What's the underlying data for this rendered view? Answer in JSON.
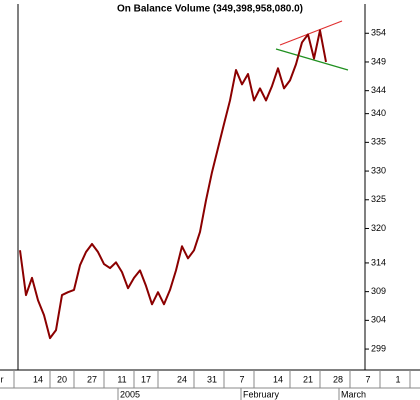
{
  "chart_data": {
    "type": "line",
    "title": "On Balance Volume (349,398,958,080.0)",
    "color": "#8b0000",
    "categories": [
      "r",
      null,
      null,
      null,
      null,
      null,
      "14",
      null,
      null,
      null,
      "20",
      null,
      null,
      null,
      null,
      "27",
      null,
      null,
      null,
      null,
      "11",
      null,
      null,
      null,
      "17",
      null,
      null,
      null,
      null,
      null,
      "24",
      null,
      null,
      null,
      null,
      "31",
      null,
      null,
      null,
      null,
      "7",
      null,
      null,
      null,
      null,
      null,
      "14",
      null,
      null,
      null,
      null,
      "21",
      null,
      null,
      null,
      null,
      "28",
      null,
      null,
      null,
      null,
      "7",
      null,
      null,
      null,
      null,
      "1",
      null
    ],
    "values": [
      null,
      null,
      null,
      316.2,
      308.4,
      311.4,
      307.5,
      304.9,
      300.9,
      302.3,
      308.4,
      308.9,
      309.3,
      313.6,
      315.9,
      317.3,
      315.9,
      313.8,
      313.1,
      314.1,
      312.4,
      309.6,
      311.4,
      312.7,
      310.0,
      306.8,
      308.9,
      306.8,
      309.3,
      312.7,
      316.9,
      314.8,
      316.2,
      319.4,
      324.9,
      329.8,
      334.0,
      338.2,
      342.3,
      347.6,
      345.1,
      346.9,
      342.3,
      344.4,
      342.3,
      344.8,
      347.9,
      344.4,
      345.8,
      348.6,
      352.4,
      353.8,
      349.6,
      354.5,
      349.0,
      null,
      null,
      null,
      null,
      null,
      null,
      null,
      null,
      null,
      null,
      null,
      null,
      null
    ],
    "x_periods": [
      "2005",
      "February",
      "March"
    ],
    "ylim": [
      295.7,
      358.4
    ],
    "yticks": [
      299,
      304,
      309,
      314,
      320,
      325,
      330,
      335,
      340,
      344,
      349,
      354
    ],
    "grid": false
  }
}
